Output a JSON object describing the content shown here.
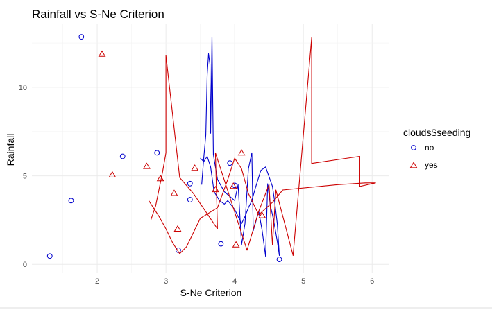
{
  "chart_data": {
    "type": "scatter",
    "title": "Rainfall vs S-Ne Criterion",
    "xlabel": "S-Ne Criterion",
    "ylabel": "Rainfall",
    "xlim": [
      1.05,
      6.25
    ],
    "ylim": [
      -0.5,
      13.6
    ],
    "x_ticks": [
      2,
      3,
      4,
      5,
      6
    ],
    "y_ticks": [
      0,
      5,
      10
    ],
    "grid": true,
    "legend": {
      "title": "clouds$seeding",
      "position": "right",
      "entries": [
        {
          "label": "no",
          "color": "#0000cc",
          "shape": "circle"
        },
        {
          "label": "yes",
          "color": "#cc0000",
          "shape": "triangle"
        }
      ]
    },
    "series": [
      {
        "label": "no",
        "color": "#0000cc",
        "shape": "circle",
        "points": [
          [
            1.31,
            0.47
          ],
          [
            1.62,
            3.6
          ],
          [
            1.77,
            12.85
          ],
          [
            2.37,
            6.1
          ],
          [
            2.87,
            6.3
          ],
          [
            3.18,
            0.8
          ],
          [
            3.35,
            4.56
          ],
          [
            3.35,
            3.65
          ],
          [
            3.8,
            1.16
          ],
          [
            3.93,
            5.72
          ],
          [
            4.0,
            4.46
          ],
          [
            4.65,
            0.28
          ]
        ],
        "line": [
          [
            3.52,
            4.5
          ],
          [
            3.55,
            6.0
          ],
          [
            3.58,
            7.3
          ],
          [
            3.6,
            10.7
          ],
          [
            3.62,
            11.9
          ],
          [
            3.64,
            11.3
          ],
          [
            3.65,
            7.4
          ],
          [
            3.67,
            12.85
          ],
          [
            3.69,
            6.2
          ],
          [
            3.75,
            4.8
          ],
          [
            3.85,
            4.1
          ],
          [
            4.0,
            3.6
          ],
          [
            4.05,
            4.5
          ],
          [
            4.1,
            1.1
          ],
          [
            4.15,
            2.3
          ],
          [
            4.2,
            5.4
          ],
          [
            4.25,
            6.3
          ],
          [
            4.27,
            1.9
          ],
          [
            4.3,
            2.3
          ],
          [
            4.35,
            3.0
          ],
          [
            4.4,
            1.9
          ],
          [
            4.45,
            0.45
          ],
          [
            4.48,
            4.55
          ],
          [
            4.52,
            3.3
          ],
          [
            4.55,
            2.8
          ],
          [
            4.58,
            2.2
          ],
          [
            4.62,
            1.3
          ],
          [
            4.65,
            0.5
          ],
          [
            4.62,
            2.3
          ],
          [
            4.58,
            3.6
          ],
          [
            4.55,
            4.4
          ],
          [
            4.45,
            5.5
          ],
          [
            4.38,
            5.3
          ],
          [
            4.3,
            4.3
          ],
          [
            4.25,
            3.6
          ],
          [
            4.2,
            3.2
          ],
          [
            4.15,
            2.7
          ],
          [
            4.1,
            2.3
          ],
          [
            4.0,
            3.1
          ],
          [
            3.9,
            3.6
          ],
          [
            3.85,
            3.4
          ],
          [
            3.78,
            3.6
          ],
          [
            3.7,
            4.1
          ],
          [
            3.65,
            5.5
          ],
          [
            3.6,
            6.1
          ],
          [
            3.55,
            5.8
          ],
          [
            3.5,
            6.0
          ]
        ]
      },
      {
        "label": "yes",
        "color": "#cc0000",
        "shape": "triangle",
        "points": [
          [
            2.07,
            11.86
          ],
          [
            2.22,
            5.04
          ],
          [
            2.72,
            5.52
          ],
          [
            2.92,
            4.83
          ],
          [
            3.12,
            4.0
          ],
          [
            3.17,
            1.98
          ],
          [
            3.42,
            5.42
          ],
          [
            3.72,
            4.21
          ],
          [
            4.02,
            1.09
          ],
          [
            4.1,
            6.28
          ],
          [
            4.4,
            2.74
          ],
          [
            3.98,
            4.4
          ]
        ],
        "line": [
          [
            2.78,
            2.5
          ],
          [
            2.85,
            3.3
          ],
          [
            2.95,
            5.2
          ],
          [
            3.0,
            6.3
          ],
          [
            3.0,
            11.8
          ],
          [
            3.2,
            4.9
          ],
          [
            3.4,
            4.0
          ],
          [
            3.75,
            2.0
          ],
          [
            3.72,
            6.3
          ],
          [
            4.18,
            0.8
          ],
          [
            4.35,
            3.0
          ],
          [
            4.5,
            4.5
          ],
          [
            4.55,
            1.1
          ],
          [
            4.6,
            4.2
          ],
          [
            4.85,
            0.5
          ],
          [
            5.12,
            12.8
          ],
          [
            5.12,
            5.7
          ],
          [
            5.82,
            6.1
          ],
          [
            5.82,
            4.4
          ],
          [
            6.05,
            4.6
          ],
          [
            5.9,
            4.6
          ],
          [
            5.5,
            4.5
          ],
          [
            4.7,
            4.2
          ],
          [
            4.55,
            3.5
          ],
          [
            4.35,
            2.8
          ],
          [
            4.2,
            4.0
          ],
          [
            4.1,
            5.4
          ],
          [
            4.0,
            6.0
          ],
          [
            3.9,
            4.8
          ],
          [
            3.75,
            3.2
          ],
          [
            3.5,
            2.6
          ],
          [
            3.3,
            1.0
          ],
          [
            3.2,
            0.6
          ],
          [
            3.1,
            1.2
          ],
          [
            3.0,
            2.0
          ],
          [
            2.9,
            2.7
          ],
          [
            2.75,
            3.6
          ]
        ]
      }
    ]
  }
}
